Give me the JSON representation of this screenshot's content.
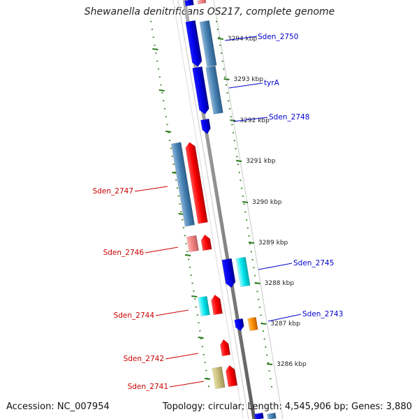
{
  "title": "Shewanella denitrificans OS217, complete genome",
  "colors": {
    "forward_cds": "#0000ff",
    "forward_class": "#4682b4",
    "reverse_cds": "#ff0000",
    "label_forward": "#0000cc",
    "label_reverse": "#cc0000",
    "backbone": "#8c8c8c",
    "tick": "#2a7a1a"
  },
  "ticks": [
    {
      "label": "3294 kbp"
    },
    {
      "label": "3293 kbp"
    },
    {
      "label": "3292 kbp"
    },
    {
      "label": "3291 kbp"
    },
    {
      "label": "3290 kbp"
    },
    {
      "label": "3289 kbp"
    },
    {
      "label": "3288 kbp"
    },
    {
      "label": "3287 kbp"
    },
    {
      "label": "3286 kbp"
    }
  ],
  "forward_labels": [
    {
      "text": "Sden_2750"
    },
    {
      "text": "tyrA"
    },
    {
      "text": "Sden_2748"
    },
    {
      "text": "Sden_2745"
    },
    {
      "text": "Sden_2743"
    }
  ],
  "reverse_labels": [
    {
      "text": "Sden_2747"
    },
    {
      "text": "Sden_2746"
    },
    {
      "text": "Sden_2744"
    },
    {
      "text": "Sden_2742"
    },
    {
      "text": "Sden_2741"
    }
  ],
  "footer": {
    "accession": "Accession: NC_007954",
    "summary": "Topology: circular; Length: 4,545,906 bp; Genes: 3,880"
  }
}
